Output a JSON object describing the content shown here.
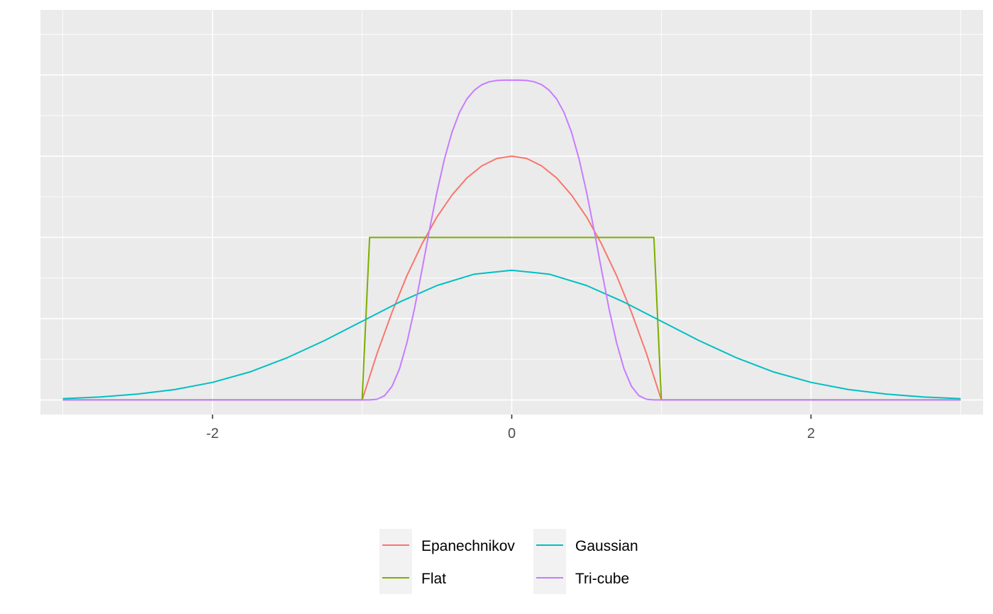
{
  "chart_data": {
    "type": "line",
    "title": "",
    "xlabel": "",
    "ylabel": "",
    "xlim": [
      -3.15,
      3.15
    ],
    "ylim": [
      -0.045,
      1.2
    ],
    "x_ticks": [
      -2,
      0,
      2
    ],
    "x_tick_labels": [
      "-2",
      "0",
      "2"
    ],
    "y_major_gridlines": [
      0,
      0.25,
      0.5,
      0.75,
      1.0
    ],
    "y_minor_gridlines": [
      0.125,
      0.375,
      0.625,
      0.875,
      1.125
    ],
    "y_tick_labels_shown": false,
    "grid": true,
    "background": "#ebebeb",
    "legend_position": "bottom",
    "series": [
      {
        "name": "Epanechnikov",
        "color": "#F8766D",
        "x": [
          -3,
          -1,
          -0.9,
          -0.8,
          -0.7,
          -0.6,
          -0.5,
          -0.4,
          -0.3,
          -0.2,
          -0.1,
          0,
          0.1,
          0.2,
          0.3,
          0.4,
          0.5,
          0.6,
          0.7,
          0.8,
          0.9,
          1,
          3
        ],
        "y": [
          0,
          0,
          0.143,
          0.27,
          0.383,
          0.48,
          0.563,
          0.63,
          0.683,
          0.72,
          0.743,
          0.75,
          0.743,
          0.72,
          0.683,
          0.63,
          0.563,
          0.48,
          0.383,
          0.27,
          0.143,
          0,
          0
        ]
      },
      {
        "name": "Flat",
        "color": "#7CAE00",
        "x": [
          -3,
          -1,
          -0.95,
          0.95,
          1,
          3
        ],
        "y": [
          0,
          0,
          0.5,
          0.5,
          0,
          0
        ]
      },
      {
        "name": "Gaussian",
        "color": "#00BFC4",
        "x": [
          -3,
          -2.75,
          -2.5,
          -2.25,
          -2,
          -1.75,
          -1.5,
          -1.25,
          -1,
          -0.75,
          -0.5,
          -0.25,
          0,
          0.25,
          0.5,
          0.75,
          1,
          1.25,
          1.5,
          1.75,
          2,
          2.25,
          2.5,
          2.75,
          3
        ],
        "y": [
          0.004,
          0.009,
          0.018,
          0.032,
          0.054,
          0.086,
          0.13,
          0.183,
          0.242,
          0.301,
          0.352,
          0.387,
          0.399,
          0.387,
          0.352,
          0.301,
          0.242,
          0.183,
          0.13,
          0.086,
          0.054,
          0.032,
          0.018,
          0.009,
          0.004
        ]
      },
      {
        "name": "Tri-cube",
        "color": "#C77CFF",
        "x": [
          -3,
          -1,
          -0.95,
          -0.9,
          -0.85,
          -0.8,
          -0.75,
          -0.7,
          -0.65,
          -0.6,
          -0.55,
          -0.5,
          -0.45,
          -0.4,
          -0.35,
          -0.3,
          -0.25,
          -0.2,
          -0.15,
          -0.1,
          -0.05,
          0,
          0.05,
          0.1,
          0.15,
          0.2,
          0.25,
          0.3,
          0.35,
          0.4,
          0.45,
          0.5,
          0.55,
          0.6,
          0.65,
          0.7,
          0.75,
          0.8,
          0.85,
          0.9,
          0.95,
          1,
          3
        ],
        "y": [
          0,
          0,
          0.0,
          0.002,
          0.013,
          0.042,
          0.096,
          0.177,
          0.281,
          0.4,
          0.523,
          0.639,
          0.741,
          0.823,
          0.884,
          0.926,
          0.953,
          0.97,
          0.979,
          0.983,
          0.984,
          0.984,
          0.984,
          0.983,
          0.979,
          0.97,
          0.953,
          0.926,
          0.884,
          0.823,
          0.741,
          0.639,
          0.523,
          0.4,
          0.281,
          0.177,
          0.096,
          0.042,
          0.013,
          0.002,
          0.0,
          0,
          0
        ]
      }
    ],
    "legend": [
      {
        "label": "Epanechnikov",
        "color": "#F8766D"
      },
      {
        "label": "Gaussian",
        "color": "#00BFC4"
      },
      {
        "label": "Flat",
        "color": "#7CAE00"
      },
      {
        "label": "Tri-cube",
        "color": "#C77CFF"
      }
    ]
  }
}
